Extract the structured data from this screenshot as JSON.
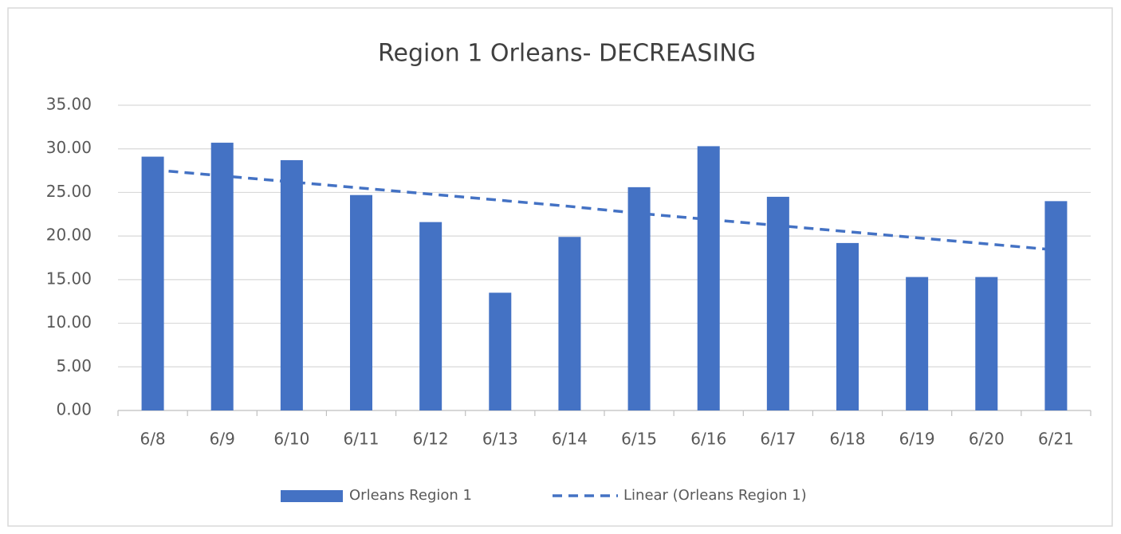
{
  "chart_data": {
    "type": "bar",
    "title": "Region 1 Orleans- DECREASING",
    "categories": [
      "6/8",
      "6/9",
      "6/10",
      "6/11",
      "6/12",
      "6/13",
      "6/14",
      "6/15",
      "6/16",
      "6/17",
      "6/18",
      "6/19",
      "6/20",
      "6/21"
    ],
    "series": [
      {
        "name": "Orleans Region 1",
        "type": "bar",
        "color": "#4472c4",
        "values": [
          29.1,
          30.7,
          28.7,
          24.7,
          21.6,
          13.5,
          19.9,
          25.6,
          30.3,
          24.5,
          19.2,
          15.3,
          15.3,
          24.0
        ]
      },
      {
        "name": "Linear (Orleans Region 1)",
        "type": "line",
        "dashed": true,
        "color": "#4472c4",
        "values": [
          27.6,
          26.9,
          26.2,
          25.5,
          24.8,
          24.1,
          23.4,
          22.6,
          21.9,
          21.2,
          20.5,
          19.8,
          19.1,
          18.4
        ]
      }
    ],
    "ylim": [
      0,
      35
    ],
    "yticks": [
      {
        "value": 0,
        "label": "0.00"
      },
      {
        "value": 5,
        "label": "5.00"
      },
      {
        "value": 10,
        "label": "10.00"
      },
      {
        "value": 15,
        "label": "15.00"
      },
      {
        "value": 20,
        "label": "20.00"
      },
      {
        "value": 25,
        "label": "25.00"
      },
      {
        "value": 30,
        "label": "30.00"
      },
      {
        "value": 35,
        "label": "35.00"
      }
    ],
    "grid": true,
    "legend": "bottom"
  }
}
